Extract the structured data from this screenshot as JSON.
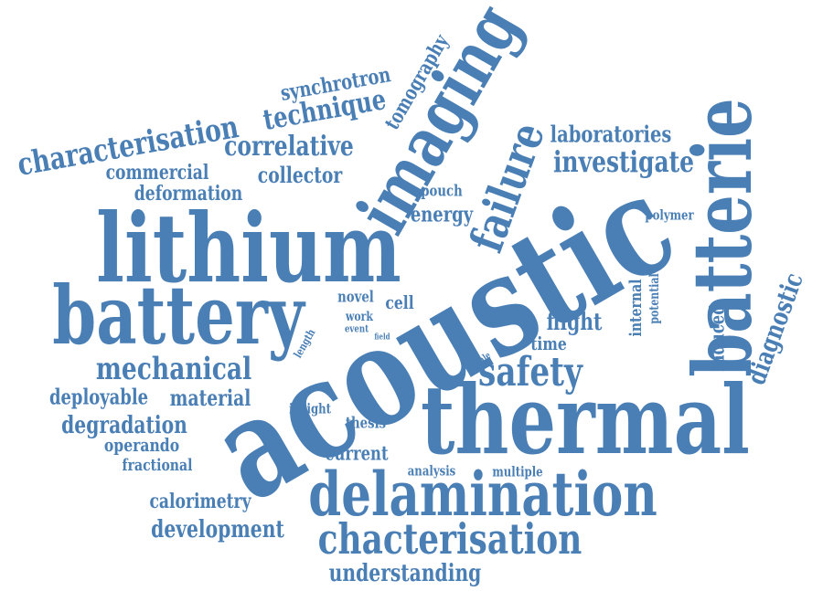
{
  "word_color": "#4a7fb5",
  "words": [
    {
      "text": "acoustic"
    },
    {
      "text": "lithium"
    },
    {
      "text": "thermal"
    },
    {
      "text": "battery"
    },
    {
      "text": "batterie"
    },
    {
      "text": "delamination"
    },
    {
      "text": "imaging"
    },
    {
      "text": "failure"
    },
    {
      "text": "chacterisation"
    },
    {
      "text": "safety"
    },
    {
      "text": "mechanical"
    },
    {
      "text": "characterisation"
    },
    {
      "text": "technique"
    },
    {
      "text": "synchrotron"
    },
    {
      "text": "correlative"
    },
    {
      "text": "investigate"
    },
    {
      "text": "laboratories"
    },
    {
      "text": "tomography"
    },
    {
      "text": "commercial"
    },
    {
      "text": "collector"
    },
    {
      "text": "deformation"
    },
    {
      "text": "energy"
    },
    {
      "text": "pouch"
    },
    {
      "text": "polymer"
    },
    {
      "text": "diagnostic"
    },
    {
      "text": "internal"
    },
    {
      "text": "potential"
    },
    {
      "text": "induced"
    },
    {
      "text": "flight"
    },
    {
      "text": "time"
    },
    {
      "text": "scale"
    },
    {
      "text": "novel"
    },
    {
      "text": "cell"
    },
    {
      "text": "work"
    },
    {
      "text": "event"
    },
    {
      "text": "field"
    },
    {
      "text": "length"
    },
    {
      "text": "deployable"
    },
    {
      "text": "material"
    },
    {
      "text": "insight"
    },
    {
      "text": "degradation"
    },
    {
      "text": "thesis"
    },
    {
      "text": "operando"
    },
    {
      "text": "current"
    },
    {
      "text": "fractional"
    },
    {
      "text": "analysis"
    },
    {
      "text": "multiple"
    },
    {
      "text": "calorimetry"
    },
    {
      "text": "development"
    },
    {
      "text": "understanding"
    }
  ]
}
